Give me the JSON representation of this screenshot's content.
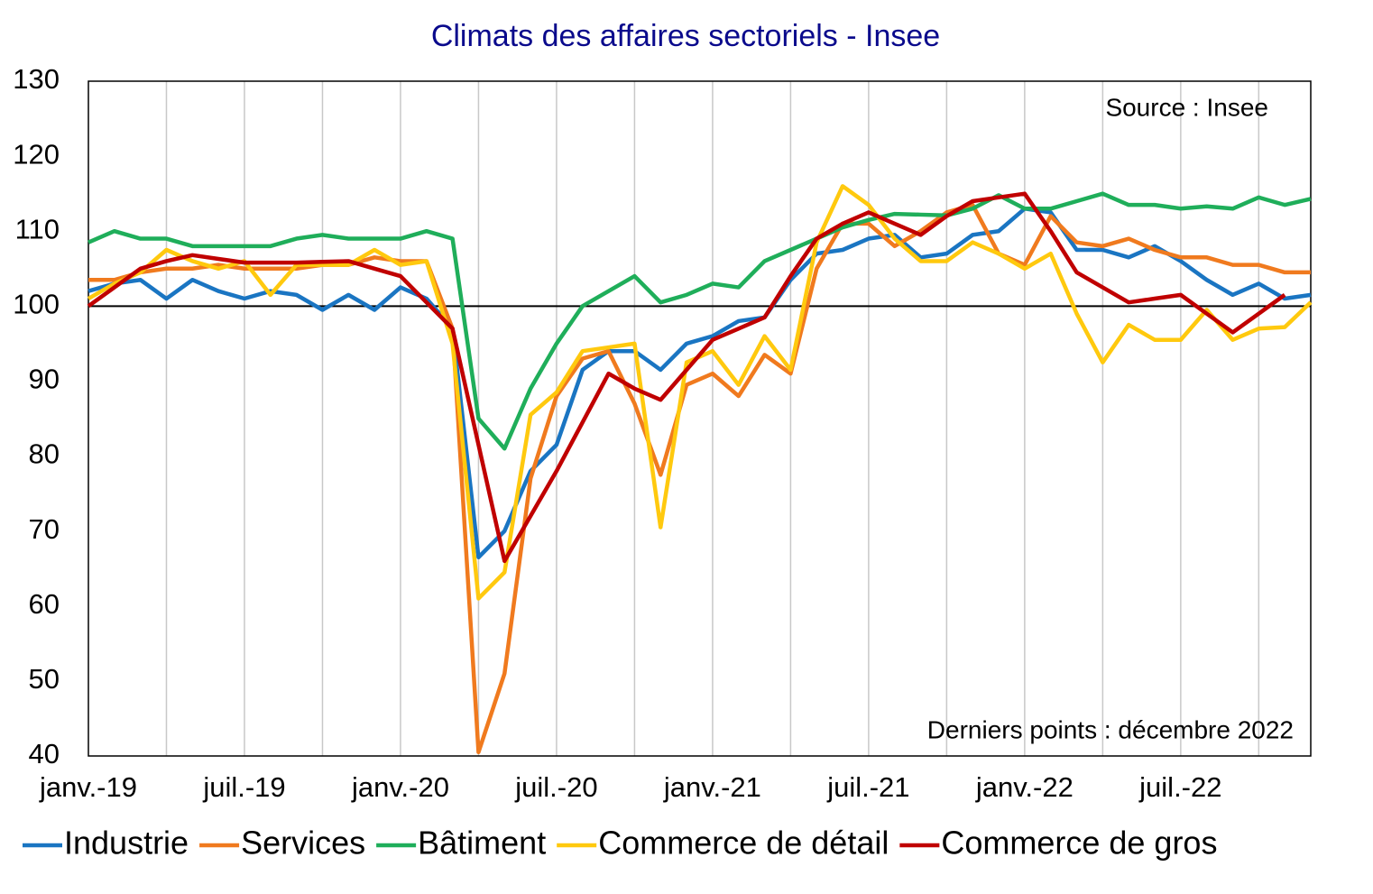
{
  "chart_data": {
    "type": "line",
    "title": "Climats des affaires sectoriels - Insee",
    "annotations": [
      "Source : Insee",
      "Derniers points : décembre 2022"
    ],
    "categories": [
      "janv.-19",
      null,
      null,
      null,
      null,
      null,
      "juil.-19",
      null,
      null,
      null,
      null,
      null,
      "janv.-20",
      null,
      null,
      null,
      null,
      null,
      "juil.-20",
      null,
      null,
      null,
      null,
      null,
      "janv.-21",
      null,
      null,
      null,
      null,
      null,
      "juil.-21",
      null,
      null,
      null,
      null,
      null,
      "janv.-22",
      null,
      null,
      null,
      null,
      null,
      "juil.-22",
      null,
      null,
      null,
      null,
      null
    ],
    "ylim": [
      40,
      130
    ],
    "yticks": [
      40,
      50,
      60,
      70,
      80,
      90,
      100,
      110,
      120,
      130
    ],
    "reference_line": 100,
    "grid": true,
    "legend": "bottom",
    "series": [
      {
        "name": "Industrie",
        "color": "#1a75c2",
        "values": [
          102,
          103,
          103.5,
          101,
          103.5,
          102,
          101,
          102,
          101.5,
          99.5,
          101.5,
          99.5,
          102.5,
          101,
          97,
          66.5,
          70,
          78,
          81.5,
          91.5,
          94,
          94,
          91.5,
          95,
          96,
          98,
          98.5,
          103.5,
          107,
          107.5,
          109,
          109.5,
          106.5,
          107,
          109.5,
          110,
          113,
          112.5,
          107.5,
          107.5,
          106.5,
          108,
          106,
          103.5,
          101.5,
          103,
          101,
          101.5
        ]
      },
      {
        "name": "Services",
        "color": "#f07a1e",
        "values": [
          103.5,
          103.5,
          104.5,
          105,
          105,
          105.5,
          105,
          105,
          105,
          105.5,
          105.5,
          106.5,
          106,
          106,
          97,
          40.5,
          51,
          77,
          88,
          93,
          94,
          87,
          77.5,
          89.5,
          91,
          88,
          93.5,
          91,
          105,
          111,
          111,
          108,
          110,
          112.5,
          113.5,
          107,
          105.5,
          112,
          108.5,
          108,
          109,
          107.5,
          106.5,
          106.5,
          105.5,
          105.5,
          104.5,
          104.5
        ]
      },
      {
        "name": "Bâtiment",
        "color": "#1fae5a",
        "values": [
          108.5,
          110,
          109,
          109,
          108,
          108,
          108,
          108,
          109,
          109.5,
          109,
          109,
          109,
          110,
          109,
          85,
          81,
          89,
          95,
          100,
          102,
          104,
          100.5,
          101.5,
          103,
          102.5,
          106,
          107.5,
          109,
          110.5,
          111.5,
          112.3,
          112.2,
          112.1,
          113,
          114.8,
          113,
          113,
          114,
          115,
          113.5,
          113.5,
          113,
          113.3,
          113,
          114.5,
          113.5,
          114.3
        ]
      },
      {
        "name": "Commerce de détail",
        "color": "#ffc90e",
        "values": [
          101,
          103,
          104.5,
          107.5,
          106,
          105,
          106,
          101.5,
          105.5,
          105.5,
          105.5,
          107.5,
          105.5,
          106,
          95,
          61,
          64.5,
          85.5,
          88.5,
          94,
          94.5,
          95,
          70.5,
          92.5,
          94,
          89.5,
          96,
          91.5,
          108.5,
          116,
          113.5,
          109,
          106,
          106,
          108.5,
          107,
          105,
          107,
          99,
          92.5,
          97.5,
          95.5,
          95.5,
          99.5,
          95.5,
          97,
          97.2,
          100.5
        ]
      },
      {
        "name": "Commerce de gros",
        "color": "#c00000",
        "values": [
          100,
          102.5,
          105,
          106,
          106.8,
          106.3,
          105.8,
          105.8,
          105.8,
          105.9,
          106,
          105,
          104,
          100.5,
          97,
          81.5,
          66,
          72,
          78,
          84.5,
          91,
          89,
          87.5,
          91.5,
          95.5,
          97,
          98.5,
          104,
          109,
          111,
          112.5,
          111,
          109.5,
          112,
          114,
          114.5,
          115,
          110,
          104.5,
          102.5,
          100.5,
          101,
          101.5,
          99,
          96.5,
          99,
          101.5,
          null
        ]
      }
    ]
  }
}
